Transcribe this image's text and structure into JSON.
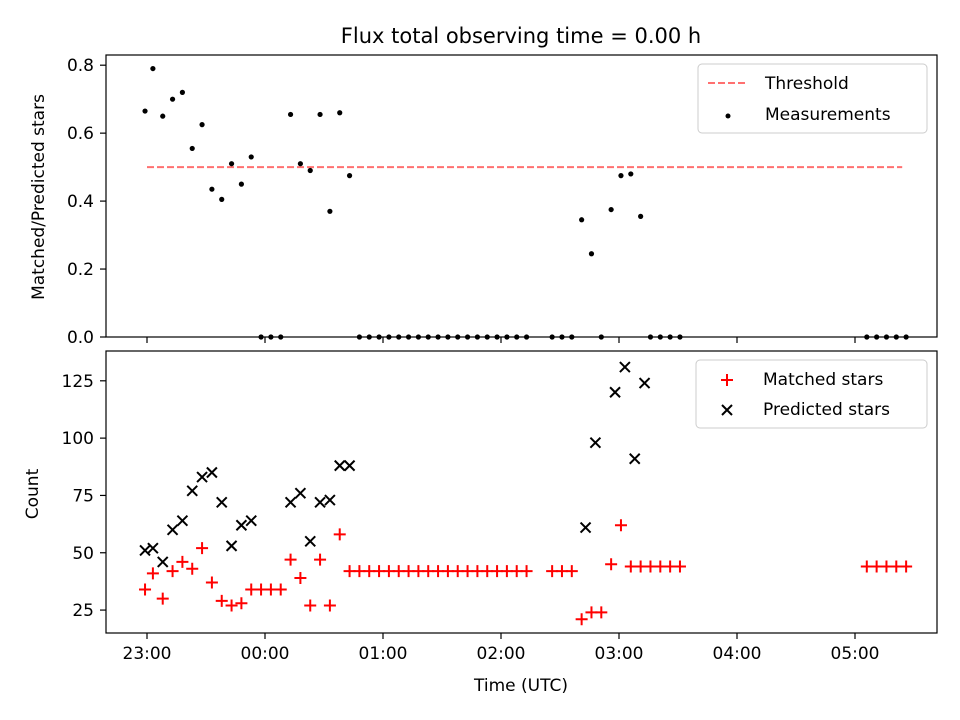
{
  "title": "Flux total observing time = 0.00 h",
  "chart_data": [
    {
      "type": "scatter",
      "ylabel": "Matched/Predicted stars",
      "ylim": [
        0,
        0.83
      ],
      "yticks": [
        0,
        0.2,
        0.4,
        0.6,
        0.8
      ],
      "ytick_labels": [
        "0.0",
        "0.2",
        "0.4",
        "0.6",
        "0.8"
      ],
      "legend_placement": "top-right",
      "colors": {
        "threshold": "#ff7070",
        "measurements": "#000000"
      },
      "threshold": {
        "name": "Threshold",
        "y": 0.5,
        "x_start": "23:00",
        "x_end": "05:24"
      },
      "measurements": {
        "name": "Measurements",
        "x": [
          "22:59",
          "23:03",
          "23:08",
          "23:13",
          "23:18",
          "23:23",
          "23:28",
          "23:33",
          "23:38",
          "23:43",
          "23:48",
          "23:53",
          "23:58",
          "00:03",
          "00:08",
          "00:13",
          "00:18",
          "00:23",
          "00:28",
          "00:33",
          "00:38",
          "00:43",
          "00:48",
          "00:53",
          "00:58",
          "01:03",
          "01:08",
          "01:13",
          "01:18",
          "01:23",
          "01:28",
          "01:33",
          "01:38",
          "01:43",
          "01:48",
          "01:53",
          "01:58",
          "02:03",
          "02:08",
          "02:13",
          "02:26",
          "02:31",
          "02:36",
          "02:41",
          "02:46",
          "02:51",
          "02:56",
          "03:01",
          "03:06",
          "03:11",
          "03:16",
          "03:21",
          "03:26",
          "03:31",
          "05:06",
          "05:11",
          "05:16",
          "05:21",
          "05:26"
        ],
        "y": [
          0.665,
          0.79,
          0.65,
          0.7,
          0.72,
          0.555,
          0.625,
          0.435,
          0.405,
          0.51,
          0.45,
          0.53,
          0.0,
          0.0,
          0.0,
          0.655,
          0.51,
          0.49,
          0.655,
          0.37,
          0.66,
          0.475,
          0.0,
          0.0,
          0.0,
          0.0,
          0.0,
          0.0,
          0.0,
          0.0,
          0.0,
          0.0,
          0.0,
          0.0,
          0.0,
          0.0,
          0.0,
          0.0,
          0.0,
          0.0,
          0.0,
          0.0,
          0.0,
          0.345,
          0.245,
          0.0,
          0.375,
          0.475,
          0.48,
          0.355,
          0.0,
          0.0,
          0.0,
          0.0,
          0.0,
          0.0,
          0.0,
          0.0,
          0.0
        ]
      }
    },
    {
      "type": "scatter",
      "xlabel": "Time (UTC)",
      "ylabel": "Count",
      "ylim": [
        15,
        138
      ],
      "yticks": [
        25,
        50,
        75,
        100,
        125
      ],
      "ytick_labels": [
        "25",
        "50",
        "75",
        "100",
        "125"
      ],
      "xticks": [
        "23:00",
        "00:00",
        "01:00",
        "02:00",
        "03:00",
        "04:00",
        "05:00"
      ],
      "legend_placement": "top-right",
      "colors": {
        "matched": "#ff0000",
        "predicted": "#000000"
      },
      "matched": {
        "name": "Matched stars",
        "x": [
          "22:59",
          "23:03",
          "23:08",
          "23:13",
          "23:18",
          "23:23",
          "23:28",
          "23:33",
          "23:38",
          "23:43",
          "23:48",
          "23:53",
          "23:58",
          "00:03",
          "00:08",
          "00:13",
          "00:18",
          "00:23",
          "00:28",
          "00:33",
          "00:38",
          "00:43",
          "00:48",
          "00:53",
          "00:58",
          "01:03",
          "01:08",
          "01:13",
          "01:18",
          "01:23",
          "01:28",
          "01:33",
          "01:38",
          "01:43",
          "01:48",
          "01:53",
          "01:58",
          "02:03",
          "02:08",
          "02:13",
          "02:26",
          "02:31",
          "02:36",
          "02:41",
          "02:46",
          "02:51",
          "02:56",
          "03:01",
          "03:06",
          "03:11",
          "03:16",
          "03:21",
          "03:26",
          "03:31",
          "05:06",
          "05:11",
          "05:16",
          "05:21",
          "05:26"
        ],
        "y": [
          34,
          41,
          30,
          42,
          46,
          43,
          52,
          37,
          29,
          27,
          28,
          34,
          34,
          34,
          34,
          47,
          39,
          27,
          47,
          27,
          58,
          42,
          42,
          42,
          42,
          42,
          42,
          42,
          42,
          42,
          42,
          42,
          42,
          42,
          42,
          42,
          42,
          42,
          42,
          42,
          42,
          42,
          42,
          21,
          24,
          24,
          45,
          62,
          44,
          44,
          44,
          44,
          44,
          44,
          44,
          44,
          44,
          44,
          44
        ]
      },
      "predicted": {
        "name": "Predicted stars",
        "x": [
          "22:59",
          "23:03",
          "23:08",
          "23:13",
          "23:18",
          "23:23",
          "23:28",
          "23:33",
          "23:38",
          "23:43",
          "23:48",
          "23:53",
          "00:13",
          "00:18",
          "00:23",
          "00:28",
          "00:33",
          "00:38",
          "00:43",
          "02:43",
          "02:48",
          "02:58",
          "03:03",
          "03:08",
          "03:13"
        ],
        "y": [
          51,
          52,
          46,
          60,
          64,
          77,
          83,
          85,
          72,
          53,
          62,
          64,
          72,
          76,
          55,
          72,
          73,
          88,
          88,
          61,
          98,
          120,
          131,
          91,
          124
        ]
      }
    }
  ]
}
